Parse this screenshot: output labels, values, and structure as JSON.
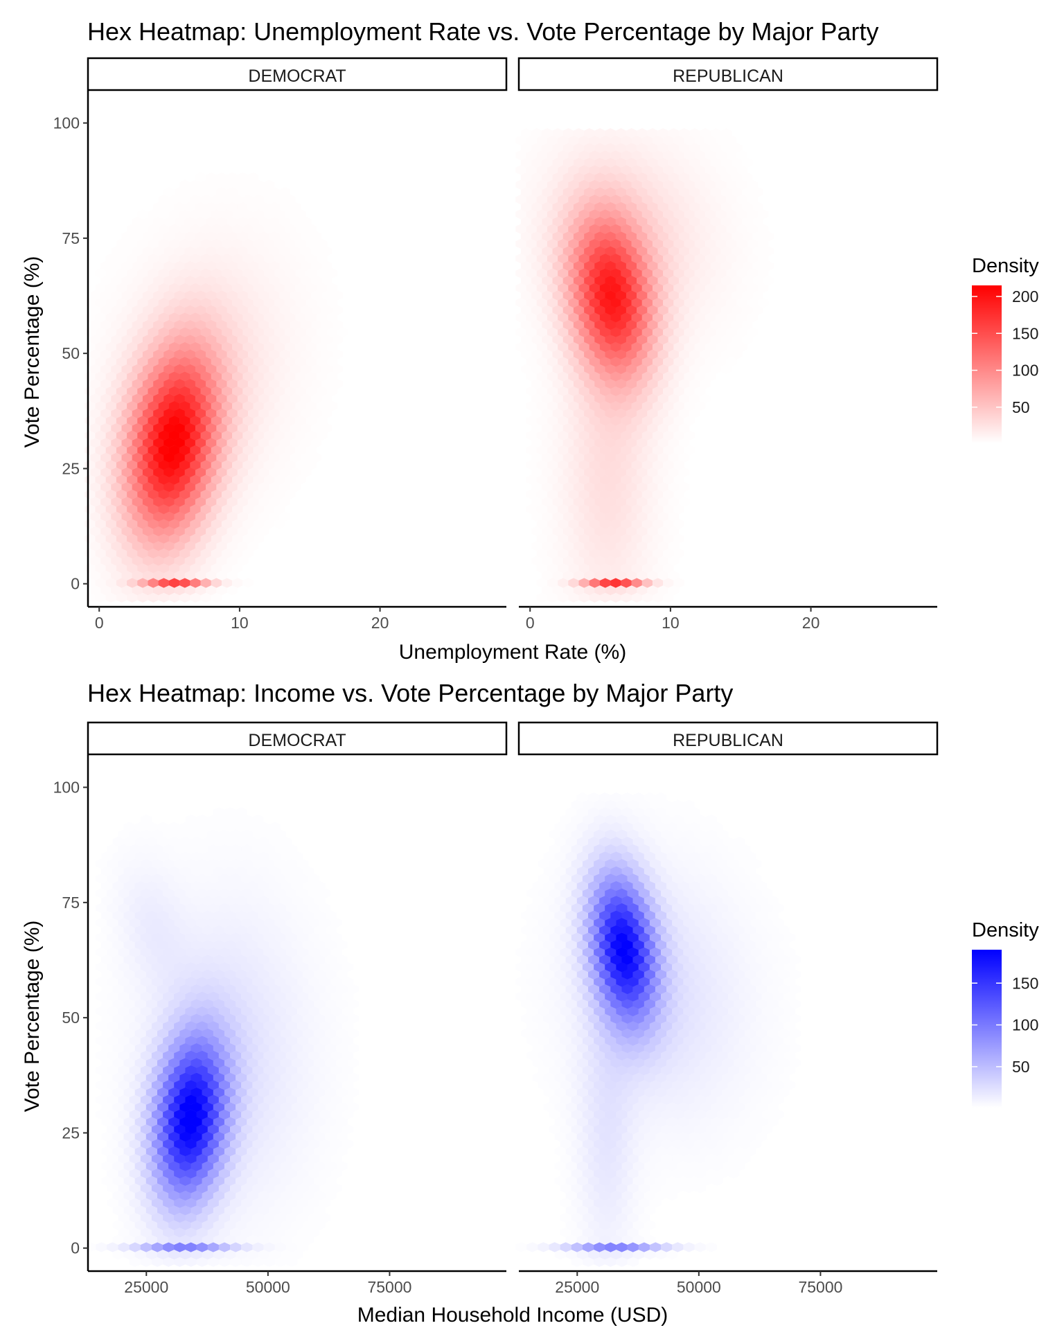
{
  "chart_data": [
    {
      "type": "hexbin",
      "title": "Hex Heatmap: Unemployment Rate vs. Vote Percentage by Major Party",
      "xlabel": "Unemployment Rate (%)",
      "ylabel": "Vote Percentage (%)",
      "xlim": [
        -0.8,
        29
      ],
      "ylim": [
        -5,
        107
      ],
      "x_ticks": [
        0,
        10,
        20
      ],
      "y_ticks": [
        0,
        25,
        50,
        75,
        100
      ],
      "hex": {
        "dx": 0.75,
        "dy": 1.6,
        "cols": 38,
        "rows": 64
      },
      "fill_color_low": "#ffffff",
      "fill_color_high": "#ff0000",
      "legend": {
        "title": "Density",
        "min": 1,
        "max": 215,
        "ticks": [
          50,
          100,
          150,
          200
        ],
        "placement": "right"
      },
      "panels": [
        {
          "label": "DEMOCRAT",
          "point_masses": [
            {
              "x": 5.5,
              "y": 0,
              "sx": 1.6,
              "sy": 0.6,
              "peak": 150
            }
          ],
          "clusters": [
            {
              "x": 5.2,
              "y": 30,
              "sx": 2.2,
              "sy": 14,
              "peak": 205,
              "rho": 0.25
            },
            {
              "x": 7.5,
              "y": 45,
              "sx": 4.0,
              "sy": 18,
              "peak": 25,
              "rho": 0.2
            }
          ]
        },
        {
          "label": "REPUBLICAN",
          "point_masses": [
            {
              "x": 6.0,
              "y": 0,
              "sx": 1.5,
              "sy": 0.6,
              "peak": 165
            }
          ],
          "clusters": [
            {
              "x": 5.8,
              "y": 62,
              "sx": 2.0,
              "sy": 12,
              "peak": 175,
              "rho": -0.2
            },
            {
              "x": 5.5,
              "y": 25,
              "sx": 2.2,
              "sy": 22,
              "peak": 28,
              "rho": 0.0
            },
            {
              "x": 7.0,
              "y": 75,
              "sx": 4.0,
              "sy": 14,
              "peak": 30,
              "rho": -0.1
            }
          ]
        }
      ]
    },
    {
      "type": "hexbin",
      "title": "Hex Heatmap: Income vs. Vote Percentage by Major Party",
      "xlabel": "Median Household Income (USD)",
      "ylabel": "Vote Percentage (%)",
      "xlim": [
        13000,
        99000
      ],
      "ylim": [
        -5,
        107
      ],
      "x_ticks": [
        25000,
        50000,
        75000
      ],
      "y_ticks": [
        0,
        25,
        50,
        75,
        100
      ],
      "hex": {
        "dx": 2300,
        "dy": 1.6,
        "cols": 38,
        "rows": 64
      },
      "fill_color_low": "#ffffff",
      "fill_color_high": "#0000ff",
      "legend": {
        "title": "Density",
        "min": 1,
        "max": 190,
        "ticks": [
          50,
          100,
          150
        ],
        "placement": "right"
      },
      "panels": [
        {
          "label": "DEMOCRAT",
          "point_masses": [
            {
              "x": 33000,
              "y": 0,
              "sx": 7000,
              "sy": 0.6,
              "peak": 85
            }
          ],
          "clusters": [
            {
              "x": 34000,
              "y": 28,
              "sx": 5000,
              "sy": 12,
              "peak": 185,
              "rho": 0.2
            },
            {
              "x": 42000,
              "y": 42,
              "sx": 11000,
              "sy": 22,
              "peak": 22,
              "rho": 0.0
            },
            {
              "x": 26000,
              "y": 70,
              "sx": 5000,
              "sy": 10,
              "peak": 12,
              "rho": -0.3
            }
          ]
        },
        {
          "label": "REPUBLICAN",
          "point_masses": [
            {
              "x": 33000,
              "y": 0,
              "sx": 7000,
              "sy": 0.6,
              "peak": 90
            }
          ],
          "clusters": [
            {
              "x": 34500,
              "y": 65,
              "sx": 4500,
              "sy": 11,
              "peak": 175,
              "rho": -0.25
            },
            {
              "x": 42000,
              "y": 55,
              "sx": 12000,
              "sy": 18,
              "peak": 22,
              "rho": -0.1
            },
            {
              "x": 31000,
              "y": 25,
              "sx": 4000,
              "sy": 20,
              "peak": 18,
              "rho": 0.0
            }
          ]
        }
      ]
    }
  ]
}
